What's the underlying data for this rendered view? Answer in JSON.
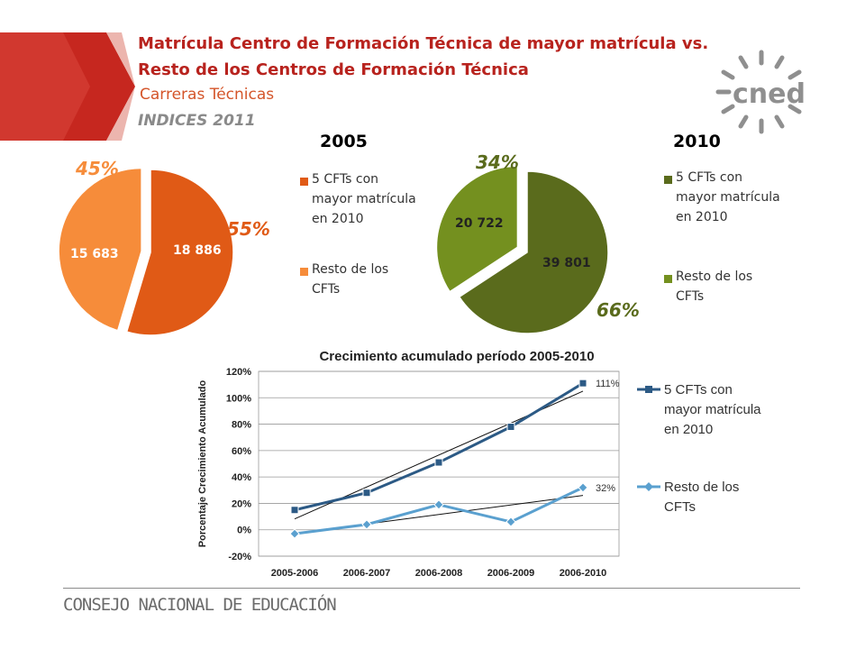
{
  "header": {
    "title": "Matrícula Centro de Formación Técnica de mayor matrícula vs. Resto de los Centros de Formación Técnica",
    "subtitle": "Carreras Técnicas",
    "indices": "INDICES 2011",
    "logo_text": "cned"
  },
  "footer": {
    "org": "CONSEJO NACIONAL DE EDUCACIÓN"
  },
  "colors": {
    "title": "#b8231e",
    "pie2005_a": "#e05a16",
    "pie2005_b": "#f68c3a",
    "pie2010_a": "#5a6b1c",
    "pie2010_b": "#74901f",
    "line_a": "#2c5a85",
    "line_b": "#5aa0cf"
  },
  "chart_data": [
    {
      "type": "pie",
      "title": "2005",
      "legend": [
        "5 CFTs con mayor matrícula en 2010",
        "Resto de los CFTs"
      ],
      "slices": [
        {
          "label": "5 CFTs con mayor matrícula en 2010",
          "value": 18886,
          "value_label": "18 886",
          "percent_label": "55%"
        },
        {
          "label": "Resto de los CFTs",
          "value": 15683,
          "value_label": "15 683",
          "percent_label": "45%"
        }
      ],
      "legend_position": "right"
    },
    {
      "type": "pie",
      "title": "2010",
      "legend": [
        "5 CFTs con mayor matrícula en 2010",
        "Resto de los CFTs"
      ],
      "slices": [
        {
          "label": "5 CFTs con mayor matrícula en 2010",
          "value": 39801,
          "value_label": "39 801",
          "percent_label": "66%"
        },
        {
          "label": "Resto de los CFTs",
          "value": 20722,
          "value_label": "20 722",
          "percent_label": "34%"
        }
      ],
      "legend_position": "right"
    },
    {
      "type": "line",
      "title": "Crecimiento acumulado período 2005-2010",
      "ylabel": "Porcentaje Crecimiento Acumulado",
      "xlabel": "",
      "categories": [
        "2005-2006",
        "2006-2007",
        "2006-2008",
        "2006-2009",
        "2006-2010"
      ],
      "yticks": [
        "-20%",
        "0%",
        "20%",
        "40%",
        "60%",
        "80%",
        "100%",
        "120%"
      ],
      "ylim": [
        -20,
        120
      ],
      "grid": true,
      "legend_position": "right",
      "series": [
        {
          "name": "5 CFTs con mayor matrícula en 2010",
          "values": [
            15,
            28,
            51,
            78,
            111
          ],
          "end_label": "111%"
        },
        {
          "name": "Resto de los CFTs",
          "values": [
            -3,
            4,
            19,
            6,
            32
          ],
          "end_label": "32%"
        }
      ],
      "trendlines": true
    }
  ]
}
